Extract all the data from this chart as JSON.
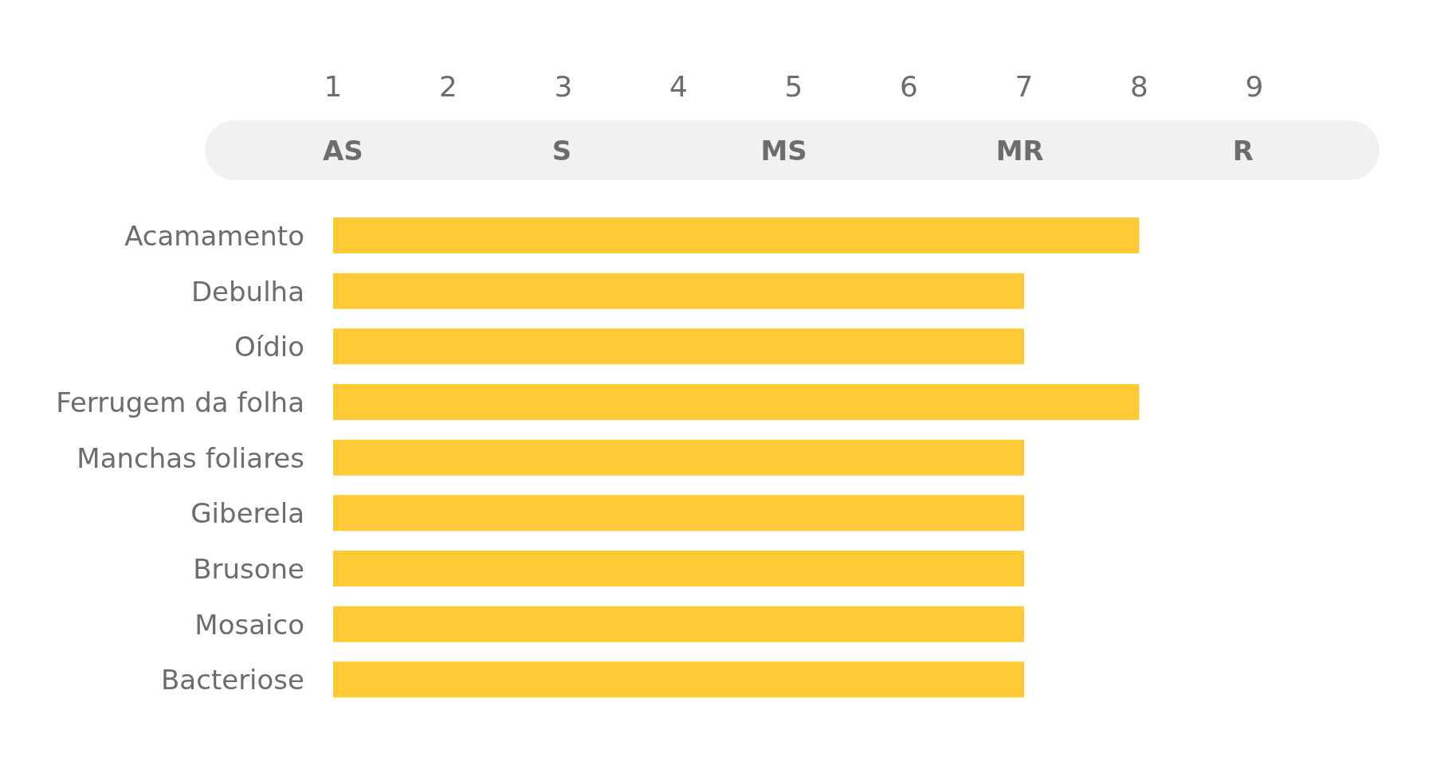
{
  "chart_data": {
    "type": "bar",
    "orientation": "horizontal",
    "categories": [
      "Acamamento",
      "Debulha",
      "Oídio",
      "Ferrugem da folha",
      "Manchas foliares",
      "Giberela",
      "Brusone",
      "Mosaico",
      "Bacteriose"
    ],
    "values": [
      8,
      7,
      7,
      8,
      7,
      7,
      7,
      7,
      7
    ],
    "color": "#ffca36",
    "xlim": [
      1,
      9
    ],
    "xticks": [
      1,
      2,
      3,
      4,
      5,
      6,
      7,
      8,
      9
    ],
    "annotations": [
      "AS",
      "S",
      "MS",
      "MR",
      "R"
    ],
    "grid": false,
    "legend": false
  }
}
